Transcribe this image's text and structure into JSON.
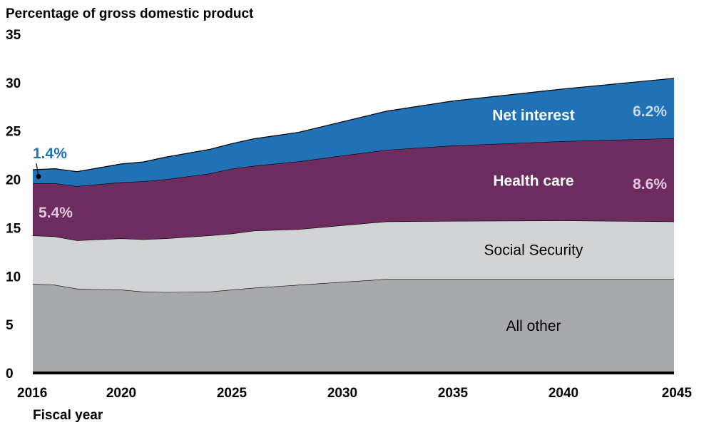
{
  "chart_data": {
    "type": "area",
    "stacked": true,
    "ylabel": "Percentage of gross domestic product",
    "xlabel": "Fiscal year",
    "xlim": [
      2016,
      2045
    ],
    "ylim": [
      0,
      35
    ],
    "x_ticks": [
      2016,
      2020,
      2025,
      2030,
      2035,
      2040,
      2045
    ],
    "y_ticks": [
      0,
      5,
      10,
      15,
      20,
      25,
      30,
      35
    ],
    "grid": false,
    "x": [
      2016,
      2017,
      2018,
      2020,
      2021,
      2022,
      2024,
      2025,
      2026,
      2028,
      2030,
      2032,
      2035,
      2040,
      2045
    ],
    "series": [
      {
        "name": "All other",
        "color": "#a7a9ac",
        "values": [
          9.2,
          9.1,
          8.7,
          8.6,
          8.4,
          8.35,
          8.4,
          8.6,
          8.8,
          9.1,
          9.4,
          9.7,
          9.7,
          9.7,
          9.7
        ]
      },
      {
        "name": "Social Security",
        "color": "#d1d3d4",
        "values": [
          5.0,
          5.0,
          5.0,
          5.3,
          5.4,
          5.55,
          5.8,
          5.8,
          5.9,
          5.75,
          5.85,
          5.95,
          6.0,
          6.05,
          5.95
        ]
      },
      {
        "name": "Health care",
        "color": "#6d2c5f",
        "values": [
          5.4,
          5.5,
          5.6,
          5.8,
          6.0,
          6.1,
          6.4,
          6.7,
          6.7,
          7.0,
          7.2,
          7.4,
          7.8,
          8.2,
          8.6
        ]
      },
      {
        "name": "Net interest",
        "color": "#2171b5",
        "values": [
          1.4,
          1.5,
          1.5,
          1.9,
          2.0,
          2.3,
          2.5,
          2.6,
          2.8,
          3.0,
          3.5,
          4.0,
          4.6,
          5.4,
          6.2
        ]
      }
    ],
    "annotations": [
      {
        "text": "1.4%",
        "series": "Net interest",
        "color": "#2171b5"
      },
      {
        "text": "5.4%",
        "series": "Health care",
        "color": "#e3c8de"
      },
      {
        "text": "6.2%",
        "series": "Net interest",
        "color": "#c6dbef"
      },
      {
        "text": "8.6%",
        "series": "Health care",
        "color": "#e3c8de"
      }
    ]
  }
}
